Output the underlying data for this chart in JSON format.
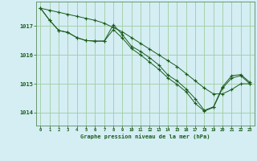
{
  "title": "Graphe pression niveau de la mer (hPa)",
  "bg_color": "#d4eef4",
  "grid_color": "#a0cca0",
  "line_color": "#1a5c1a",
  "xlim": [
    -0.5,
    23.5
  ],
  "ylim": [
    1013.55,
    1017.85
  ],
  "yticks": [
    1014,
    1015,
    1016,
    1017
  ],
  "xticks": [
    0,
    1,
    2,
    3,
    4,
    5,
    6,
    7,
    8,
    9,
    10,
    11,
    12,
    13,
    14,
    15,
    16,
    17,
    18,
    19,
    20,
    21,
    22,
    23
  ],
  "series1_straight": [
    1017.62,
    1017.55,
    1017.48,
    1017.41,
    1017.34,
    1017.27,
    1017.2,
    1017.1,
    1016.95,
    1016.8,
    1016.6,
    1016.4,
    1016.2,
    1016.0,
    1015.8,
    1015.6,
    1015.35,
    1015.1,
    1014.85,
    1014.65,
    1014.65,
    1014.8,
    1015.0,
    1015.0
  ],
  "series2": [
    1017.62,
    1017.2,
    1016.85,
    1016.78,
    1016.6,
    1016.5,
    1016.48,
    1016.48,
    1017.05,
    1016.7,
    1016.3,
    1016.12,
    1015.9,
    1015.65,
    1015.3,
    1015.1,
    1014.82,
    1014.48,
    1014.08,
    1014.2,
    1014.9,
    1015.28,
    1015.32,
    1015.05
  ],
  "series3": [
    1017.62,
    1017.2,
    1016.85,
    1016.78,
    1016.6,
    1016.5,
    1016.48,
    1016.48,
    1016.88,
    1016.58,
    1016.22,
    1016.0,
    1015.75,
    1015.5,
    1015.2,
    1014.98,
    1014.72,
    1014.32,
    1014.05,
    1014.18,
    1014.85,
    1015.2,
    1015.28,
    1015.0
  ]
}
